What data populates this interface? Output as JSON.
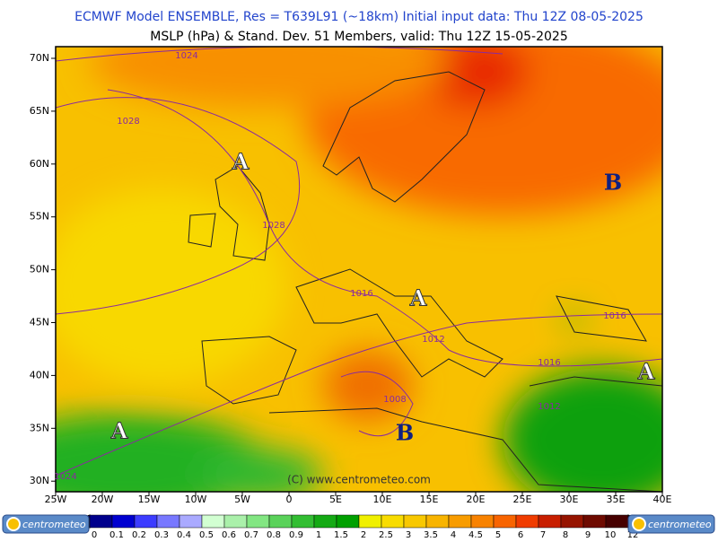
{
  "header": {
    "line1": "ECMWF Model ENSEMBLE, Res = T639L91 (~18km)  Initial input data: Thu 12Z 08-05-2025",
    "line2": "MSLP (hPa) & Stand. Dev.   51 Members, valid: Thu 12Z 15-05-2025"
  },
  "map": {
    "lat_labels": [
      "70N",
      "65N",
      "60N",
      "55N",
      "50N",
      "45N",
      "40N",
      "35N",
      "30N"
    ],
    "lon_labels": [
      "25W",
      "20W",
      "15W",
      "10W",
      "5W",
      "0",
      "5E",
      "10E",
      "15E",
      "20E",
      "25E",
      "30E",
      "35E",
      "40E"
    ],
    "pressure_labels": [
      "1024",
      "1028",
      "1028",
      "1016",
      "1012",
      "1016",
      "1016",
      "1008",
      "1012",
      "1024"
    ],
    "centers": [
      "A",
      "A",
      "A",
      "A",
      "B",
      "B"
    ],
    "copyright": "(C) www.centrometeo.com"
  },
  "colorbar": {
    "labels": [
      "0",
      "0.1",
      "0.2",
      "0.3",
      "0.4",
      "0.5",
      "0.6",
      "0.7",
      "0.8",
      "0.9",
      "1",
      "1.5",
      "2",
      "2.5",
      "3",
      "3.5",
      "4",
      "4.5",
      "5",
      "6",
      "7",
      "8",
      "9",
      "10",
      "12"
    ],
    "colors": [
      "#00008c",
      "#0000d0",
      "#3c3cff",
      "#7878ff",
      "#aaaaff",
      "#d2ffd2",
      "#aaf0aa",
      "#82e682",
      "#5ad25a",
      "#32be32",
      "#14aa14",
      "#00a000",
      "#f0f000",
      "#f8dc00",
      "#f8c800",
      "#f8b400",
      "#f89c00",
      "#f88200",
      "#f86400",
      "#f03c00",
      "#c81e00",
      "#961400",
      "#6e0a00",
      "#460000"
    ],
    "logos": [
      "centrometeo",
      "centrometeo"
    ]
  }
}
